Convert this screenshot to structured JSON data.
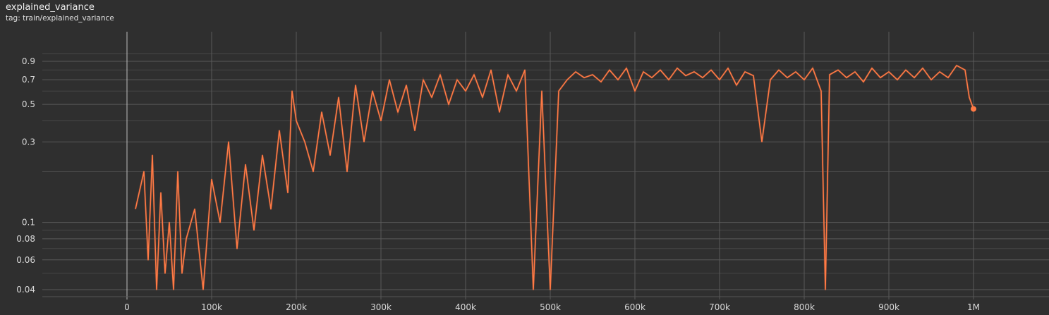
{
  "header": {
    "title": "explained_variance",
    "tag": "tag: train/explained_variance"
  },
  "colors": {
    "background": "#2f2f2f",
    "grid": "#5a5a5a",
    "series_smoothed": "#ff7a45",
    "series_raw": "#8a4a32",
    "axis_text": "#d8d8d8"
  },
  "chart_data": {
    "type": "line",
    "title": "explained_variance",
    "xlabel": "",
    "ylabel": "",
    "y_scale": "log",
    "xlim": [
      -150000,
      1090000
    ],
    "ylim": [
      0.037,
      1.2
    ],
    "grid": true,
    "x_ticks": [
      0,
      100000,
      200000,
      300000,
      400000,
      500000,
      600000,
      700000,
      800000,
      900000,
      1000000
    ],
    "x_tick_labels": [
      "0",
      "100k",
      "200k",
      "300k",
      "400k",
      "500k",
      "600k",
      "700k",
      "800k",
      "900k",
      "1M"
    ],
    "y_ticks": [
      0.04,
      0.06,
      0.08,
      0.1,
      0.3,
      0.5,
      0.7,
      0.9
    ],
    "y_tick_labels": [
      "0.04",
      "0.06",
      "0.08",
      "0.1",
      "0.3",
      "0.5",
      "0.7",
      "0.9"
    ],
    "series": [
      {
        "x": [
          10000,
          20000,
          25000,
          30000,
          35000,
          40000,
          45000,
          50000,
          55000,
          60000,
          65000,
          70000,
          80000,
          90000,
          100000,
          110000,
          120000,
          130000,
          140000,
          150000,
          160000,
          170000,
          180000,
          190000,
          195000,
          200000,
          210000,
          220000,
          230000,
          240000,
          250000,
          260000,
          270000,
          280000,
          290000,
          300000,
          310000,
          320000,
          330000,
          340000,
          350000,
          360000,
          370000,
          380000,
          390000,
          400000,
          410000,
          420000,
          430000,
          440000,
          450000,
          460000,
          470000,
          480000,
          490000,
          500000,
          510000,
          520000,
          530000,
          540000,
          550000,
          560000,
          570000,
          580000,
          590000,
          600000,
          610000,
          620000,
          630000,
          640000,
          650000,
          660000,
          670000,
          680000,
          690000,
          700000,
          710000,
          720000,
          730000,
          740000,
          750000,
          760000,
          770000,
          780000,
          790000,
          800000,
          810000,
          820000,
          825000,
          830000,
          840000,
          850000,
          860000,
          870000,
          880000,
          890000,
          900000,
          910000,
          920000,
          930000,
          940000,
          950000,
          960000,
          970000,
          980000,
          990000,
          995000,
          1000000
        ],
        "y": [
          0.12,
          0.2,
          0.06,
          0.25,
          0.04,
          0.15,
          0.05,
          0.1,
          0.04,
          0.2,
          0.05,
          0.08,
          0.12,
          0.04,
          0.18,
          0.1,
          0.3,
          0.07,
          0.22,
          0.09,
          0.25,
          0.12,
          0.35,
          0.15,
          0.6,
          0.4,
          0.3,
          0.2,
          0.45,
          0.25,
          0.55,
          0.2,
          0.65,
          0.3,
          0.6,
          0.4,
          0.7,
          0.45,
          0.65,
          0.35,
          0.7,
          0.55,
          0.75,
          0.5,
          0.7,
          0.6,
          0.75,
          0.55,
          0.8,
          0.45,
          0.75,
          0.6,
          0.8,
          0.04,
          0.6,
          0.04,
          0.6,
          0.7,
          0.78,
          0.72,
          0.75,
          0.68,
          0.8,
          0.7,
          0.82,
          0.6,
          0.78,
          0.72,
          0.8,
          0.7,
          0.82,
          0.74,
          0.78,
          0.72,
          0.8,
          0.7,
          0.82,
          0.65,
          0.78,
          0.74,
          0.3,
          0.7,
          0.8,
          0.72,
          0.78,
          0.7,
          0.82,
          0.6,
          0.04,
          0.75,
          0.8,
          0.72,
          0.78,
          0.68,
          0.82,
          0.72,
          0.78,
          0.7,
          0.8,
          0.72,
          0.82,
          0.7,
          0.78,
          0.72,
          0.85,
          0.8,
          0.55,
          0.47
        ]
      }
    ]
  }
}
